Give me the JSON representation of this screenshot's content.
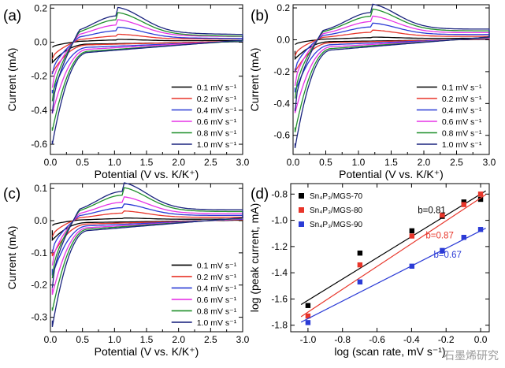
{
  "watermark": "石墨烯研究",
  "chart_data": [
    {
      "panel": "(a)",
      "type": "line",
      "xlabel": "Potential (V vs. K/K⁺)",
      "ylabel": "Current (mA)",
      "xlim": [
        0,
        3.0
      ],
      "ylim": [
        -0.66,
        0.22
      ],
      "xticks": [
        "0.0",
        "0.5",
        "1.0",
        "1.5",
        "2.0",
        "2.5",
        "3.0"
      ],
      "yticks": [
        [
          "0.2",
          0.2
        ],
        [
          "0.0",
          0.0
        ],
        [
          "-0.2",
          -0.2
        ],
        [
          "-0.4",
          -0.4
        ],
        [
          "-0.6",
          -0.6
        ]
      ],
      "legend": {
        "position": "bottom-right"
      },
      "series": [
        {
          "name": "0.1 mV s⁻¹",
          "color": "#000000",
          "peak_v": 1.05,
          "peak_mA": 0.01,
          "start_mA": -0.06,
          "end_mA": 0.01,
          "anodic_start": -0.03,
          "min_mA": -0.12
        },
        {
          "name": "0.2 mV s⁻¹",
          "color": "#e8352a",
          "peak_v": 1.05,
          "peak_mA": 0.03,
          "start_mA": -0.17,
          "end_mA": 0.02,
          "anodic_start": -0.1,
          "min_mA": -0.18
        },
        {
          "name": "0.4 mV s⁻¹",
          "color": "#2b3bd6",
          "peak_v": 1.05,
          "peak_mA": 0.06,
          "start_mA": -0.28,
          "end_mA": 0.02,
          "anodic_start": -0.19,
          "min_mA": -0.3
        },
        {
          "name": "0.6 mV s⁻¹",
          "color": "#e634e6",
          "peak_v": 1.05,
          "peak_mA": 0.09,
          "start_mA": -0.4,
          "end_mA": 0.03,
          "anodic_start": -0.27,
          "min_mA": -0.42
        },
        {
          "name": "0.8 mV s⁻¹",
          "color": "#1f8f2a",
          "peak_v": 1.05,
          "peak_mA": 0.12,
          "start_mA": -0.5,
          "end_mA": 0.03,
          "anodic_start": -0.35,
          "min_mA": -0.52
        },
        {
          "name": "1.0 mV s⁻¹",
          "color": "#1a237e",
          "peak_v": 1.05,
          "peak_mA": 0.14,
          "start_mA": -0.58,
          "end_mA": 0.04,
          "anodic_start": -0.42,
          "min_mA": -0.6
        }
      ]
    },
    {
      "panel": "(b)",
      "type": "line",
      "xlabel": "Potential (V vs. K/K⁺)",
      "ylabel": "Current (mA)",
      "xlim": [
        0,
        3.0
      ],
      "ylim": [
        -0.72,
        0.22
      ],
      "xticks": [
        "0.0",
        "0.5",
        "1.0",
        "1.5",
        "2.0",
        "2.5",
        "3.0"
      ],
      "yticks": [
        [
          "0.2",
          0.2
        ],
        [
          "0.0",
          0.0
        ],
        [
          "-0.2",
          -0.2
        ],
        [
          "-0.4",
          -0.4
        ],
        [
          "-0.6",
          -0.6
        ]
      ],
      "legend": {
        "position": "bottom-right"
      },
      "series": [
        {
          "name": "0.1 mV s⁻¹",
          "color": "#000000",
          "peak_v": 1.2,
          "peak_mA": 0.01,
          "start_mA": -0.07,
          "end_mA": 0.01,
          "anodic_start": -0.03,
          "min_mA": -0.12
        },
        {
          "name": "0.2 mV s⁻¹",
          "color": "#e8352a",
          "peak_v": 1.2,
          "peak_mA": 0.04,
          "start_mA": -0.18,
          "end_mA": 0.02,
          "anodic_start": -0.1,
          "min_mA": -0.2
        },
        {
          "name": "0.4 mV s⁻¹",
          "color": "#2b3bd6",
          "peak_v": 1.2,
          "peak_mA": 0.07,
          "start_mA": -0.3,
          "end_mA": 0.03,
          "anodic_start": -0.2,
          "min_mA": -0.33
        },
        {
          "name": "0.6 mV s⁻¹",
          "color": "#e634e6",
          "peak_v": 1.2,
          "peak_mA": 0.1,
          "start_mA": -0.43,
          "end_mA": 0.04,
          "anodic_start": -0.29,
          "min_mA": -0.46
        },
        {
          "name": "0.8 mV s⁻¹",
          "color": "#1f8f2a",
          "peak_v": 1.2,
          "peak_mA": 0.13,
          "start_mA": -0.55,
          "end_mA": 0.05,
          "anodic_start": -0.37,
          "min_mA": -0.58
        },
        {
          "name": "1.0 mV s⁻¹",
          "color": "#1a237e",
          "peak_v": 1.2,
          "peak_mA": 0.15,
          "start_mA": -0.65,
          "end_mA": 0.06,
          "anodic_start": -0.45,
          "min_mA": -0.68
        }
      ]
    },
    {
      "panel": "(c)",
      "type": "line",
      "xlabel": "Potential (V vs. K/K⁺)",
      "ylabel": "Current (mA)",
      "xlim": [
        0,
        3.0
      ],
      "ylim": [
        -0.345,
        0.115
      ],
      "xticks": [
        "0.0",
        "0.5",
        "1.0",
        "1.5",
        "2.0",
        "2.5",
        "3.0"
      ],
      "yticks": [
        [
          "0.1",
          0.1
        ],
        [
          "0.0",
          0.0
        ],
        [
          "-0.1",
          -0.1
        ],
        [
          "-0.2",
          -0.2
        ],
        [
          "-0.3",
          -0.3
        ]
      ],
      "legend": {
        "position": "bottom-right"
      },
      "series": [
        {
          "name": "0.1 mV s⁻¹",
          "color": "#000000",
          "peak_v": 1.12,
          "peak_mA": 0.005,
          "start_mA": -0.03,
          "end_mA": 0.005,
          "anodic_start": -0.015,
          "min_mA": -0.06
        },
        {
          "name": "0.2 mV s⁻¹",
          "color": "#e8352a",
          "peak_v": 1.12,
          "peak_mA": 0.02,
          "start_mA": -0.09,
          "end_mA": 0.01,
          "anodic_start": -0.05,
          "min_mA": -0.11
        },
        {
          "name": "0.4 mV s⁻¹",
          "color": "#2b3bd6",
          "peak_v": 1.12,
          "peak_mA": 0.035,
          "start_mA": -0.15,
          "end_mA": 0.015,
          "anodic_start": -0.1,
          "min_mA": -0.17
        },
        {
          "name": "0.6 mV s⁻¹",
          "color": "#e634e6",
          "peak_v": 1.12,
          "peak_mA": 0.05,
          "start_mA": -0.21,
          "end_mA": 0.02,
          "anodic_start": -0.14,
          "min_mA": -0.23
        },
        {
          "name": "0.8 mV s⁻¹",
          "color": "#1f8f2a",
          "peak_v": 1.12,
          "peak_mA": 0.07,
          "start_mA": -0.27,
          "end_mA": 0.025,
          "anodic_start": -0.18,
          "min_mA": -0.28
        },
        {
          "name": "1.0 mV s⁻¹",
          "color": "#1a237e",
          "peak_v": 1.12,
          "peak_mA": 0.08,
          "start_mA": -0.31,
          "end_mA": 0.03,
          "anodic_start": -0.21,
          "min_mA": -0.33
        }
      ]
    },
    {
      "panel": "(d)",
      "type": "scatter",
      "xlabel": "log (scan rate, mV s⁻¹)",
      "ylabel": "log (peak current, mA)",
      "xlim": [
        -1.1,
        0.05
      ],
      "ylim": [
        -1.85,
        -0.72
      ],
      "xticks": [
        [
          "-1.0",
          -1.0
        ],
        [
          "-0.8",
          -0.8
        ],
        [
          "-0.6",
          -0.6
        ],
        [
          "-0.4",
          -0.4
        ],
        [
          "-0.2",
          -0.2
        ],
        [
          "0.0",
          0.0
        ]
      ],
      "yticks": [
        [
          "-0.8",
          -0.8
        ],
        [
          "-1.0",
          -1.0
        ],
        [
          "-1.2",
          -1.2
        ],
        [
          "-1.4",
          -1.4
        ],
        [
          "-1.6",
          -1.6
        ],
        [
          "-1.8",
          -1.8
        ]
      ],
      "legend": {
        "position": "top-left"
      },
      "x": [
        -1.0,
        -0.699,
        -0.398,
        -0.222,
        -0.097,
        0.0
      ],
      "series": [
        {
          "name": "Sn₄P₃/MGS-70",
          "color": "#000000",
          "y": [
            -1.65,
            -1.25,
            -1.08,
            -0.97,
            -0.86,
            -0.84
          ],
          "fit": {
            "slope": 0.81,
            "intercept": -0.8,
            "x": [
              -1.04,
              0.03
            ]
          },
          "fit_label": "b=0.81"
        },
        {
          "name": "Sn₄P₃/MGS-80",
          "color": "#e8352a",
          "y": [
            -1.73,
            -1.34,
            -1.12,
            -0.96,
            -0.88,
            -0.8
          ],
          "fit": {
            "slope": 0.87,
            "intercept": -0.83,
            "x": [
              -1.04,
              0.03
            ]
          },
          "fit_label": "b=0.87"
        },
        {
          "name": "Sn₄P₃/MGS-90",
          "color": "#2b3bd6",
          "y": [
            -1.78,
            -1.47,
            -1.35,
            -1.23,
            -1.13,
            -1.07
          ],
          "fit": {
            "slope": 0.67,
            "intercept": -1.08,
            "x": [
              -1.04,
              0.03
            ]
          },
          "fit_label": "b=0.67"
        }
      ]
    }
  ]
}
